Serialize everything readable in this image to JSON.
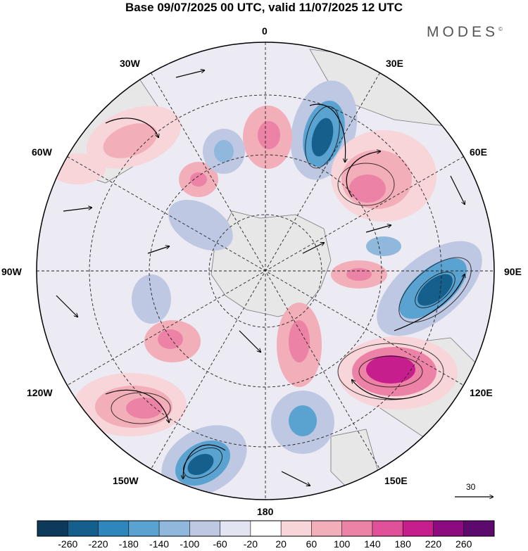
{
  "title": "Base 09/07/2025 00 UTC, valid 11/07/2025 12 UTC",
  "brand": "MODES",
  "brand_mark": "©",
  "longitude_labels": {
    "n0": "0",
    "e30": "30E",
    "e60": "60E",
    "e90": "90E",
    "e120": "120E",
    "e150": "150E",
    "s180": "180",
    "w150": "150W",
    "w120": "120W",
    "w90": "90W",
    "w60": "60W",
    "w30": "30W"
  },
  "reference_vector_label": "30",
  "colorbar": {
    "ticks": [
      "-260",
      "-220",
      "-180",
      "-140",
      "-100",
      "-60",
      "-20",
      "20",
      "60",
      "100",
      "140",
      "180",
      "220",
      "260"
    ],
    "colors": [
      "#0d3a5a",
      "#155f8d",
      "#2e86bd",
      "#5aa3d0",
      "#8fb8dc",
      "#bfc8e2",
      "#e3e4f1",
      "#ffffff",
      "#f7d5d9",
      "#f2aeb9",
      "#ec83a6",
      "#e0519a",
      "#c61e8c",
      "#8c0b7e",
      "#5c0a6d"
    ]
  },
  "colors": {
    "land": "#ececec",
    "coast": "#555555",
    "grid": "#222222",
    "arrow": "#000000"
  }
}
